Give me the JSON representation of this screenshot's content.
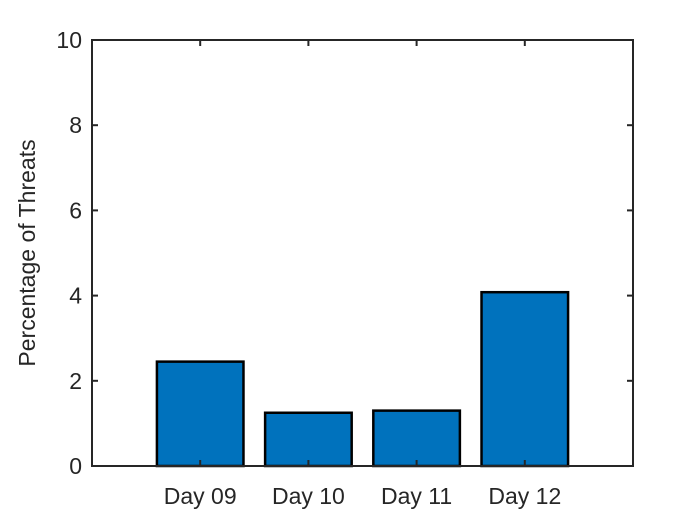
{
  "chart_data": {
    "type": "bar",
    "title": "",
    "xlabel": "",
    "ylabel": "Percentage of Threats",
    "categories": [
      "Day 09",
      "Day 10",
      "Day 11",
      "Day 12"
    ],
    "values": [
      2.45,
      1.25,
      1.3,
      4.08
    ],
    "ylim": [
      0,
      10
    ],
    "yticks": [
      0,
      2,
      4,
      6,
      8,
      10
    ],
    "xlim": [
      0,
      5
    ],
    "grid": false,
    "legend": "none",
    "bar_color": "#0072BD",
    "edge_color": "#000000",
    "axis_color": "#262626"
  }
}
